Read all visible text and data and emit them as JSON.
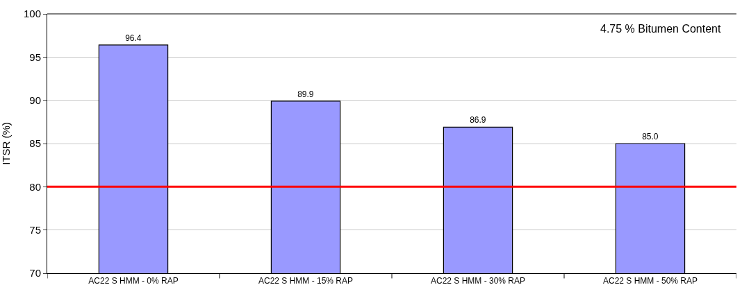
{
  "chart_data": {
    "type": "bar",
    "categories": [
      "AC22 S HMM - 0% RAP",
      "AC22 S HMM - 15% RAP",
      "AC22 S HMM - 30% RAP",
      "AC22 S HMM - 50% RAP"
    ],
    "values": [
      96.4,
      89.9,
      86.9,
      85.0
    ],
    "value_labels": [
      "96.4",
      "89.9",
      "86.9",
      "85.0"
    ],
    "color": "#9999ff",
    "ylabel": "ITSR (%)",
    "ylim": [
      70,
      100
    ],
    "yticks": [
      70,
      75,
      80,
      85,
      90,
      95,
      100
    ],
    "grid": "y",
    "ref_lines": [
      {
        "axis": "y",
        "value": 80,
        "color": "#ff0000"
      }
    ],
    "annotations": [
      "4.75 % Bitumen Content"
    ]
  }
}
